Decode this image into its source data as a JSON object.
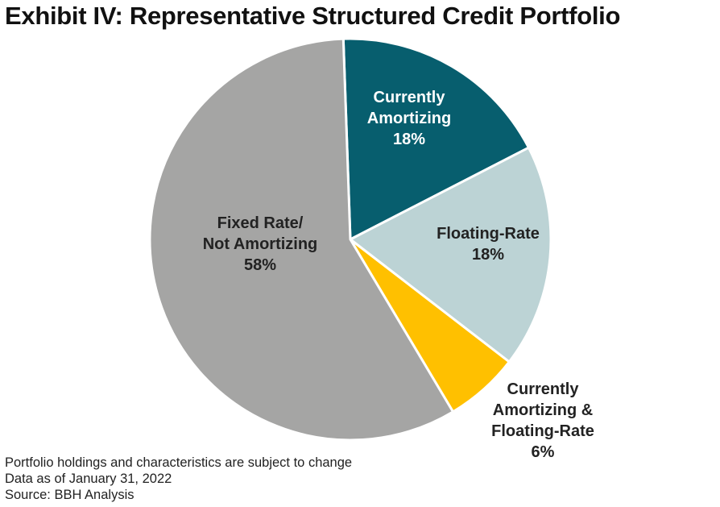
{
  "title": "Exhibit IV: Representative Structured Credit Portfolio",
  "chart_data": {
    "type": "pie",
    "title": "Exhibit IV: Representative Structured Credit Portfolio",
    "slices": [
      {
        "label": [
          "Currently",
          "Amortizing"
        ],
        "value": 18,
        "value_label": "18%",
        "color": "#075e6e",
        "label_color": "#ffffff"
      },
      {
        "label": [
          "Floating-Rate"
        ],
        "value": 18,
        "value_label": "18%",
        "color": "#bcd3d5",
        "label_color": "#222222"
      },
      {
        "label": [
          "Currently",
          "Amortizing &",
          "Floating-Rate"
        ],
        "value": 6,
        "value_label": "6%",
        "color": "#ffc000",
        "label_color": "#222222"
      },
      {
        "label": [
          "Fixed Rate/",
          "Not Amortizing"
        ],
        "value": 58,
        "value_label": "58%",
        "color": "#a5a5a4",
        "label_color": "#222222"
      }
    ]
  },
  "footnotes": [
    "Portfolio holdings and characteristics are subject to change",
    "Data as of January 31, 2022",
    "Source: BBH Analysis"
  ]
}
